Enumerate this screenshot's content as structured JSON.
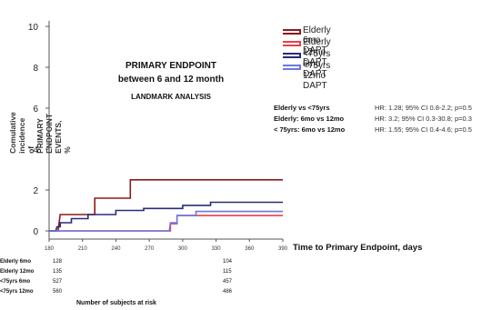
{
  "chart_data": {
    "type": "line",
    "title_lines": [
      "PRIMARY ENDPOINT",
      "between 6 and 12 month"
    ],
    "subtitle": "LANDMARK ANALYSIS",
    "xlabel": "Time to Primary Endpoint, days",
    "ylabel": "Comulative incidence of PRIMARY ENDPOINT EVENTS, %",
    "xlim": [
      180,
      390
    ],
    "ylim": [
      0,
      10
    ],
    "x_ticks": [
      180,
      210,
      240,
      270,
      300,
      330,
      360,
      390
    ],
    "y_ticks": [
      0,
      2,
      4,
      6,
      8,
      10
    ],
    "grid": false,
    "legend_position": "top-right",
    "series": [
      {
        "name": "Elderly 6mo DAPT",
        "color": "#8B1A1A",
        "x": [
          180,
          188,
          190,
          221,
          221,
          253,
          253,
          390
        ],
        "y": [
          0,
          0,
          0.8,
          0.8,
          1.6,
          1.6,
          2.5,
          2.5
        ]
      },
      {
        "name": "Elderly 12mo DAPT",
        "color": "#E8404A",
        "x": [
          180,
          289,
          289,
          295,
          295,
          390
        ],
        "y": [
          0,
          0,
          0.35,
          0.35,
          0.75,
          0.75
        ]
      },
      {
        "name": "<75yrs 6mo DAPT",
        "color": "#2A2A7A",
        "x": [
          180,
          186,
          187,
          190,
          190,
          200,
          200,
          215,
          215,
          240,
          240,
          265,
          265,
          300,
          300,
          325,
          325,
          390
        ],
        "y": [
          0,
          0,
          0.2,
          0.2,
          0.4,
          0.4,
          0.6,
          0.6,
          0.8,
          0.8,
          1.0,
          1.0,
          1.1,
          1.1,
          1.25,
          1.25,
          1.4,
          1.4
        ]
      },
      {
        "name": "<75yrs 12mo DAPT",
        "color": "#6A78E0",
        "x": [
          180,
          288,
          289,
          295,
          295,
          312,
          312,
          390
        ],
        "y": [
          0,
          0,
          0.4,
          0.4,
          0.75,
          0.75,
          0.95,
          0.95
        ]
      }
    ],
    "comparisons": [
      {
        "label": "Elderly vs <75yrs",
        "stat": "HR: 1.28; 95% CI 0.8-2.2; p=0.5"
      },
      {
        "label": "Elderly: 6mo vs 12mo",
        "stat": "HR: 3.2; 95% CI 0.3-30.8; p=0.3"
      },
      {
        "label": "< 75yrs: 6mo vs 12mo",
        "stat": "HR: 1.55; 95% CI 0.4-4.6; p=0.5"
      }
    ],
    "risk_table": {
      "title": "Number of subjects at risk",
      "time_points": [
        180,
        360
      ],
      "rows": [
        {
          "label": "Elderly 6mo",
          "values": [
            "128",
            "104"
          ]
        },
        {
          "label": "Elderly 12mo",
          "values": [
            "135",
            "115"
          ]
        },
        {
          "label": "<75yrs 6mo",
          "values": [
            "527",
            "457"
          ]
        },
        {
          "label": "<75yrs 12mo",
          "values": [
            "560",
            "486"
          ]
        }
      ]
    }
  }
}
